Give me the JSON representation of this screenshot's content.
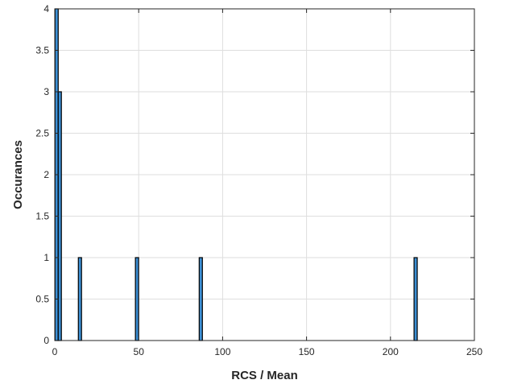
{
  "chart_data": {
    "type": "bar",
    "title": "",
    "xlabel": "RCS / Mean",
    "ylabel": "Occurances",
    "xlim": [
      0,
      250
    ],
    "ylim": [
      0,
      4
    ],
    "xticks": [
      0,
      50,
      100,
      150,
      200,
      250
    ],
    "yticks": [
      0,
      0.5,
      1,
      1.5,
      2,
      2.5,
      3,
      3.5,
      4
    ],
    "grid": true,
    "bin_width": 1.9,
    "bars": [
      {
        "x": 1.1,
        "value": 4
      },
      {
        "x": 3.0,
        "value": 3
      },
      {
        "x": 15.0,
        "value": 1
      },
      {
        "x": 49.0,
        "value": 1
      },
      {
        "x": 87.0,
        "value": 1
      },
      {
        "x": 215.0,
        "value": 1
      }
    ],
    "colors": {
      "bar_fill": "#3c8fd4",
      "bar_edge": "#000000",
      "grid": "#dedede",
      "axis": "#262626"
    }
  }
}
